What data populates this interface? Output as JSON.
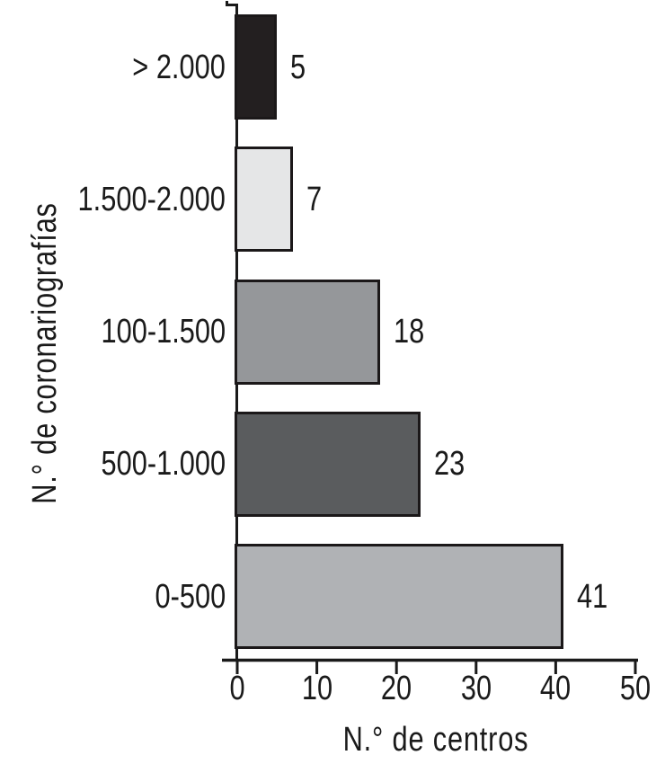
{
  "chart_data": {
    "type": "bar",
    "orientation": "horizontal",
    "title": "",
    "categories": [
      "> 2.000",
      "1.500-2.000",
      "100-1.500",
      "500-1.000",
      "0-500"
    ],
    "values": [
      5,
      7,
      18,
      23,
      41
    ],
    "value_labels": [
      "5",
      "7",
      "18",
      "23",
      "41"
    ],
    "bar_colors": [
      "#231f20",
      "#e5e6e7",
      "#95979a",
      "#5a5c5e",
      "#b0b2b5"
    ],
    "bar_border_color": "#1b1819",
    "xlabel": "N.° de centros",
    "ylabel": "N.° de coronariografías",
    "xlim": [
      0,
      50
    ],
    "x_ticks": [
      0,
      10,
      20,
      30,
      40,
      50
    ],
    "x_tick_labels": [
      "0",
      "10",
      "20",
      "30",
      "40",
      "50"
    ],
    "grid": false,
    "legend": null,
    "background": "#ffffff",
    "axis_color": "#1a1a1a",
    "text_color": "#1a1a1a"
  }
}
